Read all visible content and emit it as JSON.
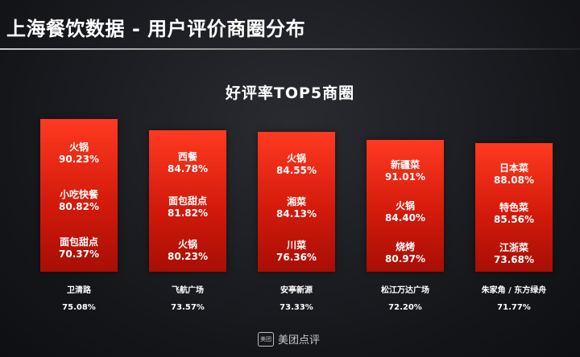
{
  "header": {
    "title": "上海餐饮数据 - 用户评价商圈分布"
  },
  "logo": {
    "box_text": "美团",
    "text": "美团点评"
  },
  "colors": {
    "bar": "#e0200e",
    "background": "#1b1c20",
    "text": "#ffffff"
  },
  "chart_data": {
    "type": "bar",
    "title": "好评率TOP5商圈",
    "categories": [
      "卫清路",
      "飞航广场",
      "安亭新源",
      "松江万达广场",
      "朱家角 / 东方绿舟"
    ],
    "values": [
      75.08,
      73.57,
      73.33,
      72.2,
      71.77
    ],
    "value_labels": [
      "75.08%",
      "73.57%",
      "73.33%",
      "72.20%",
      "71.77%"
    ],
    "bar_contents": [
      [
        {
          "cuisine": "火锅",
          "rate": "90.23%"
        },
        {
          "cuisine": "小吃快餐",
          "rate": "80.82%"
        },
        {
          "cuisine": "面包甜点",
          "rate": "70.37%"
        }
      ],
      [
        {
          "cuisine": "西餐",
          "rate": "84.78%"
        },
        {
          "cuisine": "面包甜点",
          "rate": "81.82%"
        },
        {
          "cuisine": "火锅",
          "rate": "80.23%"
        }
      ],
      [
        {
          "cuisine": "火锅",
          "rate": "84.55%"
        },
        {
          "cuisine": "湘菜",
          "rate": "84.13%"
        },
        {
          "cuisine": "川菜",
          "rate": "76.36%"
        }
      ],
      [
        {
          "cuisine": "新疆菜",
          "rate": "91.01%"
        },
        {
          "cuisine": "火锅",
          "rate": "84.40%"
        },
        {
          "cuisine": "烧烤",
          "rate": "80.97%"
        }
      ],
      [
        {
          "cuisine": "日本菜",
          "rate": "88.08%"
        },
        {
          "cuisine": "特色菜",
          "rate": "85.56%"
        },
        {
          "cuisine": "江浙菜",
          "rate": "73.68%"
        }
      ]
    ]
  }
}
